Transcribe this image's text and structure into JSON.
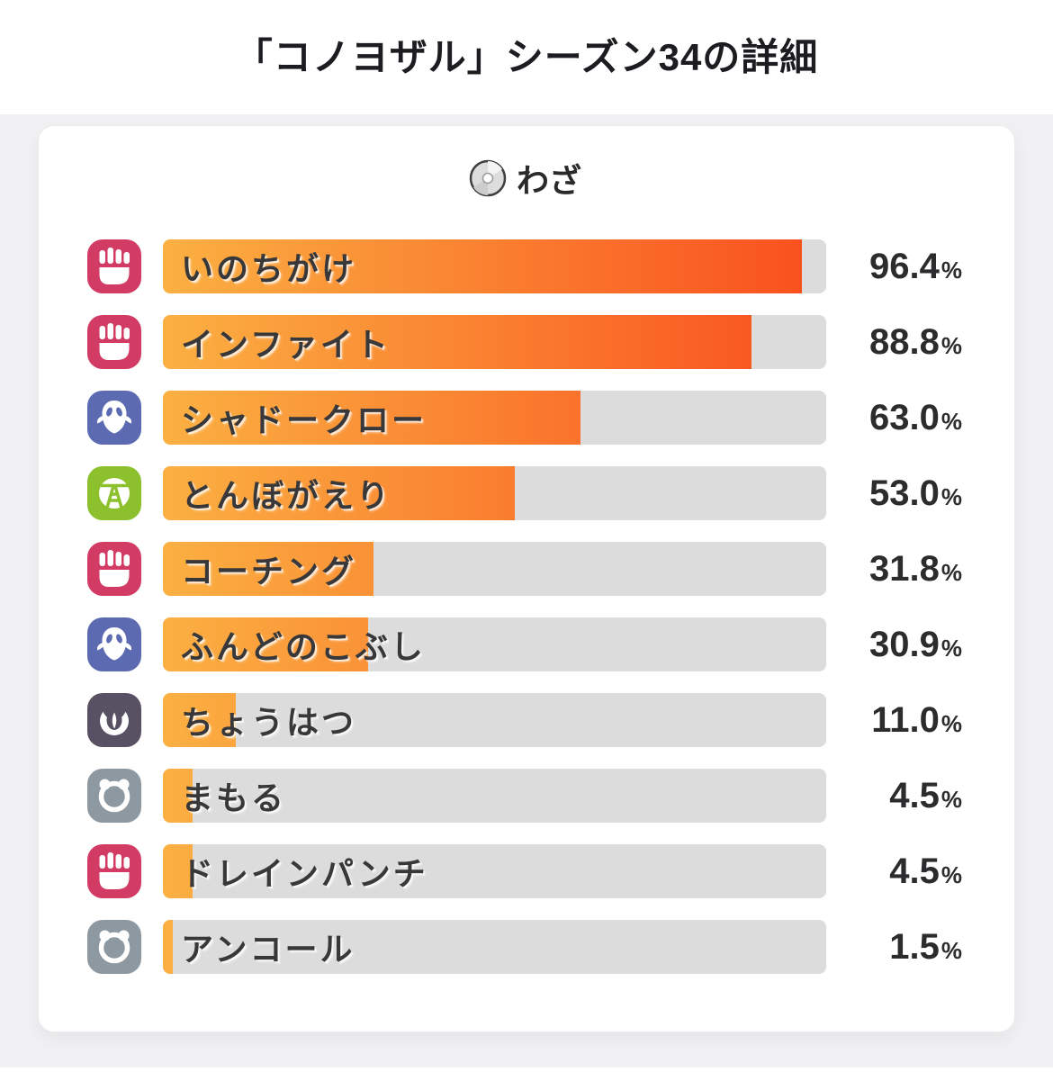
{
  "page_title": "「コノヨザル」シーズン34の詳細",
  "card": {
    "section_title": "わざ",
    "section_icon": "tm-disc-icon"
  },
  "chart_data": {
    "type": "bar",
    "orientation": "horizontal",
    "title": "わざ",
    "unit": "%",
    "xlim": [
      0,
      100
    ],
    "categories": [
      "いのちがけ",
      "インファイト",
      "シャドークロー",
      "とんぼがえり",
      "コーチング",
      "ふんどのこぶし",
      "ちょうはつ",
      "まもる",
      "ドレインパンチ",
      "アンコール"
    ],
    "values": [
      96.4,
      88.8,
      63.0,
      53.0,
      31.8,
      30.9,
      11.0,
      4.5,
      4.5,
      1.5
    ],
    "rows": [
      {
        "label": "いのちがけ",
        "type": "fighting",
        "value": 96.4,
        "display": "96.4"
      },
      {
        "label": "インファイト",
        "type": "fighting",
        "value": 88.8,
        "display": "88.8"
      },
      {
        "label": "シャドークロー",
        "type": "ghost",
        "value": 63.0,
        "display": "63.0"
      },
      {
        "label": "とんぼがえり",
        "type": "bug",
        "value": 53.0,
        "display": "53.0"
      },
      {
        "label": "コーチング",
        "type": "fighting",
        "value": 31.8,
        "display": "31.8"
      },
      {
        "label": "ふんどのこぶし",
        "type": "ghost",
        "value": 30.9,
        "display": "30.9"
      },
      {
        "label": "ちょうはつ",
        "type": "dark",
        "value": 11.0,
        "display": "11.0"
      },
      {
        "label": "まもる",
        "type": "normal",
        "value": 4.5,
        "display": "4.5"
      },
      {
        "label": "ドレインパンチ",
        "type": "fighting",
        "value": 4.5,
        "display": "4.5"
      },
      {
        "label": "アンコール",
        "type": "normal",
        "value": 1.5,
        "display": "1.5"
      }
    ]
  },
  "colors": {
    "type_fighting": "#d23c64",
    "type_ghost": "#5c6ab2",
    "type_bug": "#8cc12d",
    "type_dark": "#585164",
    "type_normal": "#8e98a1",
    "bar_gradient_start": "#fbb042",
    "bar_gradient_end": "#f94e1e",
    "bar_track": "#dcdcdc",
    "card_background": "#ffffff",
    "page_background": "#f1f1f3"
  }
}
